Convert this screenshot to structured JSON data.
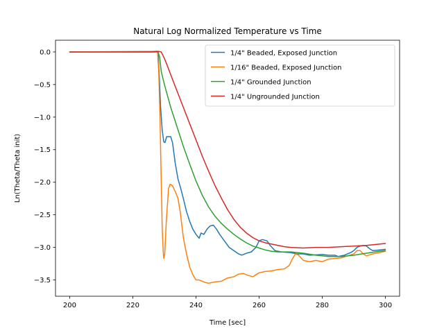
{
  "chart_data": {
    "type": "line",
    "title": "Natural Log Normalized Temperature vs Time",
    "xlabel": "Time [sec]",
    "ylabel": "Ln(Theta/Theta init)",
    "xlim": [
      195.5,
      304.5
    ],
    "ylim": [
      -3.75,
      0.18
    ],
    "xticks": [
      200,
      220,
      240,
      260,
      280,
      300
    ],
    "yticks": [
      0.0,
      -0.5,
      -1.0,
      -1.5,
      -2.0,
      -2.5,
      -3.0,
      -3.5
    ],
    "ytick_labels": [
      "0.0",
      "−0.5",
      "−1.0",
      "−1.5",
      "−2.0",
      "−2.5",
      "−3.0",
      "−3.5"
    ],
    "grid": false,
    "legend_position": "top-right",
    "series": [
      {
        "name": "1/4\" Beaded, Exposed Junction",
        "color": "#1f77b4",
        "points": [
          [
            200,
            0
          ],
          [
            227,
            0
          ],
          [
            228,
            0
          ],
          [
            228.4,
            -0.4
          ],
          [
            228.8,
            -0.85
          ],
          [
            229.3,
            -1.2
          ],
          [
            229.8,
            -1.38
          ],
          [
            230.2,
            -1.39
          ],
          [
            230.7,
            -1.3
          ],
          [
            232,
            -1.3
          ],
          [
            232.6,
            -1.4
          ],
          [
            233.4,
            -1.7
          ],
          [
            234.3,
            -1.95
          ],
          [
            235.2,
            -2.1
          ],
          [
            236,
            -2.25
          ],
          [
            237,
            -2.45
          ],
          [
            238,
            -2.6
          ],
          [
            239,
            -2.72
          ],
          [
            240,
            -2.8
          ],
          [
            241,
            -2.86
          ],
          [
            241.6,
            -2.78
          ],
          [
            242.5,
            -2.8
          ],
          [
            243.5,
            -2.72
          ],
          [
            244.5,
            -2.67
          ],
          [
            245.5,
            -2.66
          ],
          [
            246.5,
            -2.72
          ],
          [
            247.5,
            -2.8
          ],
          [
            249,
            -2.9
          ],
          [
            250.5,
            -3.0
          ],
          [
            252,
            -3.05
          ],
          [
            253.5,
            -3.1
          ],
          [
            254.5,
            -3.12
          ],
          [
            256,
            -3.09
          ],
          [
            257.5,
            -3.07
          ],
          [
            259,
            -3.0
          ],
          [
            260,
            -2.9
          ],
          [
            261,
            -2.88
          ],
          [
            262.5,
            -2.9
          ],
          [
            263.5,
            -2.97
          ],
          [
            265,
            -3.05
          ],
          [
            267,
            -3.07
          ],
          [
            270,
            -3.08
          ],
          [
            272,
            -3.1
          ],
          [
            274,
            -3.1
          ],
          [
            276,
            -3.12
          ],
          [
            280,
            -3.11
          ],
          [
            282,
            -3.12
          ],
          [
            284,
            -3.12
          ],
          [
            285,
            -3.14
          ],
          [
            287,
            -3.12
          ],
          [
            289,
            -3.08
          ],
          [
            290,
            -3.05
          ],
          [
            291,
            -3.0
          ],
          [
            292,
            -2.98
          ],
          [
            293,
            -2.97
          ],
          [
            294,
            -2.98
          ],
          [
            295,
            -3.02
          ],
          [
            296,
            -3.05
          ],
          [
            298,
            -3.04
          ],
          [
            300,
            -3.03
          ]
        ]
      },
      {
        "name": "1/16\" Beaded, Exposed Junction",
        "color": "#ff7f0e",
        "points": [
          [
            200,
            0
          ],
          [
            227,
            0.01
          ],
          [
            227.8,
            0.01
          ],
          [
            228.2,
            -0.3
          ],
          [
            228.6,
            -1.0
          ],
          [
            229,
            -2.0
          ],
          [
            229.3,
            -2.7
          ],
          [
            229.6,
            -3.05
          ],
          [
            229.8,
            -3.17
          ],
          [
            230.1,
            -3.1
          ],
          [
            230.6,
            -2.6
          ],
          [
            231.3,
            -2.1
          ],
          [
            231.8,
            -2.03
          ],
          [
            232.5,
            -2.05
          ],
          [
            233.5,
            -2.15
          ],
          [
            234.3,
            -2.25
          ],
          [
            235,
            -2.45
          ],
          [
            236,
            -2.85
          ],
          [
            237,
            -3.1
          ],
          [
            238,
            -3.3
          ],
          [
            239,
            -3.42
          ],
          [
            240,
            -3.5
          ],
          [
            241,
            -3.5
          ],
          [
            242,
            -3.52
          ],
          [
            243,
            -3.54
          ],
          [
            244,
            -3.55
          ],
          [
            246,
            -3.53
          ],
          [
            248,
            -3.52
          ],
          [
            250,
            -3.47
          ],
          [
            252,
            -3.45
          ],
          [
            253.5,
            -3.41
          ],
          [
            255,
            -3.4
          ],
          [
            256.5,
            -3.43
          ],
          [
            258,
            -3.45
          ],
          [
            260,
            -3.39
          ],
          [
            262,
            -3.37
          ],
          [
            264,
            -3.36
          ],
          [
            266,
            -3.34
          ],
          [
            268,
            -3.33
          ],
          [
            269.5,
            -3.28
          ],
          [
            270.5,
            -3.18
          ],
          [
            271.5,
            -3.1
          ],
          [
            272.5,
            -3.12
          ],
          [
            274,
            -3.2
          ],
          [
            276,
            -3.22
          ],
          [
            278,
            -3.2
          ],
          [
            280,
            -3.22
          ],
          [
            282,
            -3.18
          ],
          [
            284,
            -3.17
          ],
          [
            286,
            -3.16
          ],
          [
            288,
            -3.13
          ],
          [
            290,
            -3.1
          ],
          [
            291,
            -3.05
          ],
          [
            292,
            -3.05
          ],
          [
            293,
            -3.1
          ],
          [
            294,
            -3.13
          ],
          [
            296,
            -3.1
          ],
          [
            298,
            -3.08
          ],
          [
            300,
            -3.06
          ]
        ]
      },
      {
        "name": "1/4\" Grounded Junction",
        "color": "#2ca02c",
        "points": [
          [
            200,
            0
          ],
          [
            227,
            0
          ],
          [
            228,
            0
          ],
          [
            228.5,
            -0.08
          ],
          [
            229,
            -0.3
          ],
          [
            230,
            -0.5
          ],
          [
            232,
            -0.85
          ],
          [
            234,
            -1.15
          ],
          [
            236,
            -1.45
          ],
          [
            238,
            -1.72
          ],
          [
            240,
            -1.98
          ],
          [
            242,
            -2.2
          ],
          [
            244,
            -2.38
          ],
          [
            246,
            -2.52
          ],
          [
            248,
            -2.63
          ],
          [
            250,
            -2.72
          ],
          [
            252,
            -2.8
          ],
          [
            254,
            -2.87
          ],
          [
            256,
            -2.93
          ],
          [
            258,
            -2.98
          ],
          [
            260,
            -3.01
          ],
          [
            262,
            -3.04
          ],
          [
            264,
            -3.06
          ],
          [
            266,
            -3.07
          ],
          [
            270,
            -3.07
          ],
          [
            274,
            -3.09
          ],
          [
            278,
            -3.12
          ],
          [
            282,
            -3.14
          ],
          [
            286,
            -3.14
          ],
          [
            290,
            -3.12
          ],
          [
            294,
            -3.09
          ],
          [
            298,
            -3.06
          ],
          [
            300,
            -3.05
          ]
        ]
      },
      {
        "name": "1/4\" Ungrounded Junction",
        "color": "#d62728",
        "points": [
          [
            200,
            0
          ],
          [
            226,
            0
          ],
          [
            228,
            0.01
          ],
          [
            229,
            0
          ],
          [
            230,
            -0.1
          ],
          [
            231,
            -0.22
          ],
          [
            232,
            -0.35
          ],
          [
            234,
            -0.6
          ],
          [
            236,
            -0.85
          ],
          [
            238,
            -1.1
          ],
          [
            240,
            -1.35
          ],
          [
            242,
            -1.6
          ],
          [
            244,
            -1.83
          ],
          [
            246,
            -2.05
          ],
          [
            248,
            -2.24
          ],
          [
            250,
            -2.42
          ],
          [
            252,
            -2.57
          ],
          [
            254,
            -2.69
          ],
          [
            256,
            -2.78
          ],
          [
            258,
            -2.85
          ],
          [
            260,
            -2.9
          ],
          [
            262,
            -2.93
          ],
          [
            264,
            -2.95
          ],
          [
            266,
            -2.97
          ],
          [
            268,
            -2.99
          ],
          [
            270,
            -3.0
          ],
          [
            274,
            -3.01
          ],
          [
            278,
            -3.0
          ],
          [
            282,
            -3.0
          ],
          [
            286,
            -2.99
          ],
          [
            290,
            -2.98
          ],
          [
            294,
            -2.97
          ],
          [
            298,
            -2.95
          ],
          [
            300,
            -2.94
          ]
        ]
      }
    ]
  }
}
